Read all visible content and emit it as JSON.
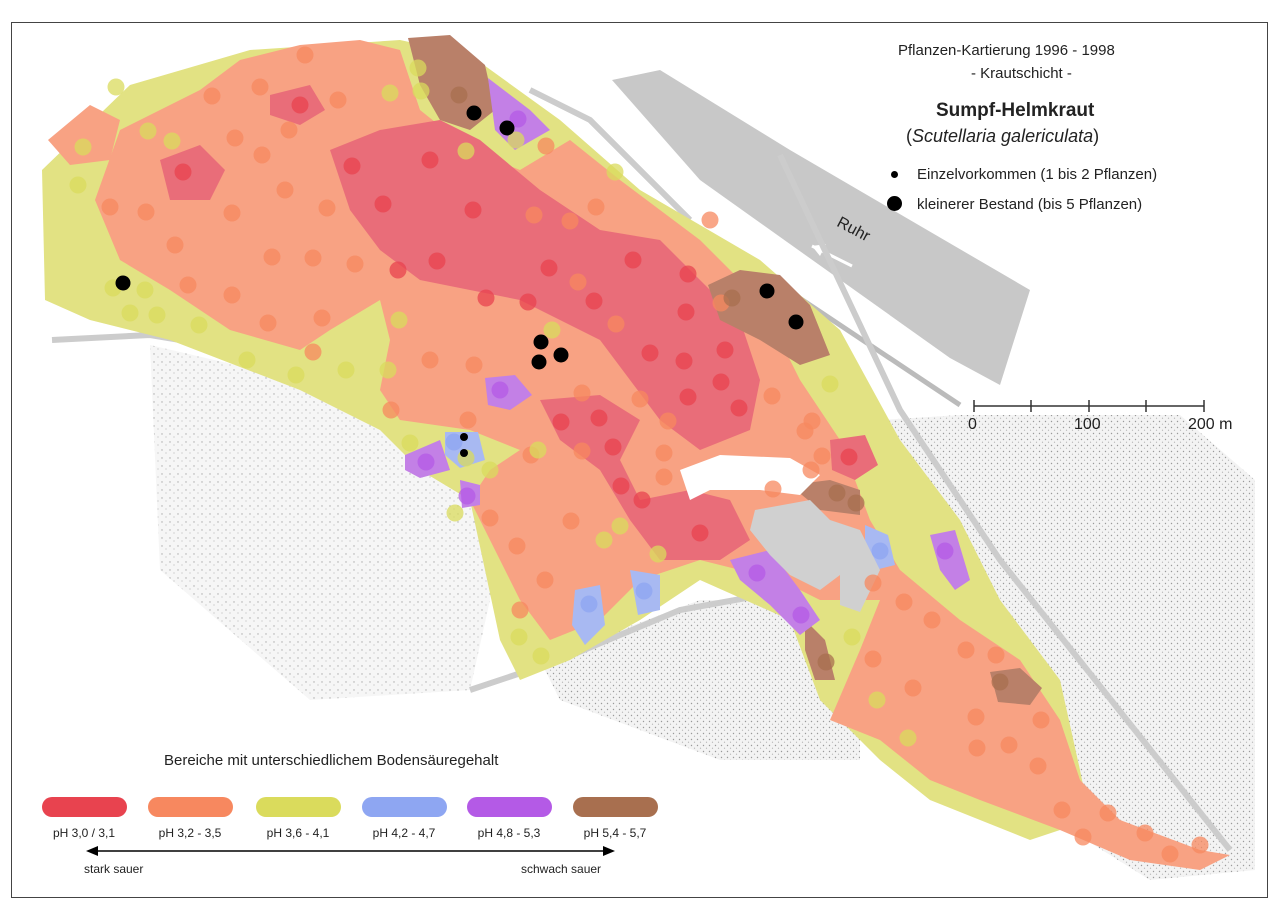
{
  "map": {
    "title_line1": "Pflanzen-Kartierung 1996 - 1998",
    "title_line2": "- Krautschicht -",
    "species_common": "Sumpf-Helmkraut",
    "species_latin": "Scutellaria galericulata",
    "river_label": "Ruhr"
  },
  "occurrence_legend": {
    "single": "Einzelvorkommen (1 bis 2 Pflanzen)",
    "small_stand": "kleinerer Bestand (bis 5 Pflanzen)"
  },
  "scale_bar": {
    "ticks": [
      "0",
      "100",
      "200 m"
    ]
  },
  "ph_legend": {
    "heading": "Bereiche mit unterschiedlichem Bodensäuregehalt",
    "classes": [
      {
        "label": "pH 3,0 / 3,1",
        "color": "#e8434f"
      },
      {
        "label": "pH 3,2 - 3,5",
        "color": "#f7885f"
      },
      {
        "label": "pH 3,6 - 4,1",
        "color": "#dadb5c"
      },
      {
        "label": "pH 4,2 - 4,7",
        "color": "#8ea6f2"
      },
      {
        "label": "pH 4,8 - 5,3",
        "color": "#b45ae6"
      },
      {
        "label": "pH 5,4 - 5,7",
        "color": "#a86f4f"
      }
    ],
    "left_label": "stark sauer",
    "right_label": "schwach sauer"
  }
}
